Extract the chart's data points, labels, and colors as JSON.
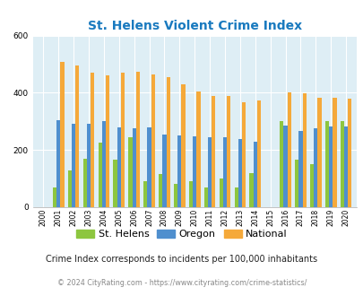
{
  "title": "St. Helens Violent Crime Index",
  "years": [
    2000,
    2001,
    2002,
    2003,
    2004,
    2005,
    2006,
    2007,
    2008,
    2009,
    2010,
    2011,
    2012,
    2013,
    2014,
    2015,
    2016,
    2017,
    2018,
    2019,
    2020
  ],
  "st_helens": [
    0,
    70,
    130,
    170,
    225,
    165,
    245,
    90,
    115,
    80,
    90,
    70,
    100,
    70,
    120,
    0,
    300,
    165,
    150,
    300,
    300
  ],
  "oregon": [
    0,
    305,
    290,
    290,
    300,
    280,
    275,
    280,
    255,
    250,
    248,
    243,
    243,
    238,
    228,
    0,
    285,
    265,
    275,
    282,
    282
  ],
  "national": [
    0,
    507,
    494,
    470,
    460,
    469,
    474,
    464,
    454,
    429,
    404,
    388,
    388,
    367,
    373,
    0,
    400,
    397,
    382,
    382,
    379
  ],
  "bar_width": 0.25,
  "ylim": [
    0,
    600
  ],
  "yticks": [
    0,
    200,
    400,
    600
  ],
  "color_sthelens": "#8dc63f",
  "color_oregon": "#4f8fce",
  "color_national": "#f5a93a",
  "bg_color": "#deeef5",
  "grid_color": "#ffffff",
  "title_color": "#1a7abf",
  "legend_labels": [
    "St. Helens",
    "Oregon",
    "National"
  ],
  "note": "Crime Index corresponds to incidents per 100,000 inhabitants",
  "copyright": "© 2024 CityRating.com - https://www.cityrating.com/crime-statistics/"
}
